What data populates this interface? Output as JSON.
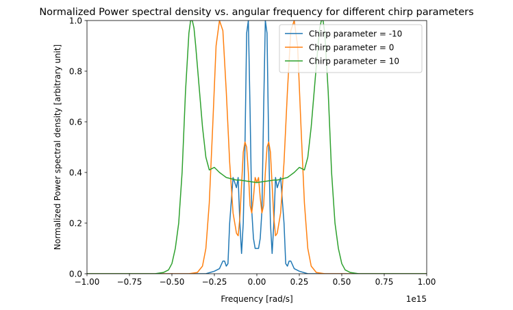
{
  "chart_data": {
    "type": "line",
    "title": "Normalized Power spectral density vs. angular frequency for different chirp parameters",
    "xlabel": "Frequency [rad/s]",
    "ylabel": "Normalized Power spectral density [arbitrary unit]",
    "x_offset_label": "1e15",
    "xlim": [
      -1.0,
      1.0
    ],
    "ylim": [
      0.0,
      1.0
    ],
    "x_ticks": [
      -1.0,
      -0.75,
      -0.5,
      -0.25,
      0.0,
      0.25,
      0.5,
      0.75,
      1.0
    ],
    "x_tick_labels": [
      "−1.00",
      "−0.75",
      "−0.50",
      "−0.25",
      "0.00",
      "0.25",
      "0.50",
      "0.75",
      "1.00"
    ],
    "y_ticks": [
      0.0,
      0.2,
      0.4,
      0.6,
      0.8,
      1.0
    ],
    "y_tick_labels": [
      "0.0",
      "0.2",
      "0.4",
      "0.6",
      "0.8",
      "1.0"
    ],
    "grid": false,
    "legend_position": "top-right",
    "series": [
      {
        "name": "Chirp parameter = -10",
        "color": "#1f77b4",
        "x": [
          -1.0,
          -0.3,
          -0.25,
          -0.22,
          -0.2,
          -0.19,
          -0.18,
          -0.17,
          -0.16,
          -0.14,
          -0.13,
          -0.12,
          -0.11,
          -0.1,
          -0.09,
          -0.08,
          -0.07,
          -0.06,
          -0.05,
          -0.04,
          -0.03,
          -0.02,
          -0.01,
          0.0,
          0.01,
          0.02,
          0.03,
          0.04,
          0.05,
          0.06,
          0.07,
          0.08,
          0.09,
          0.1,
          0.11,
          0.12,
          0.13,
          0.14,
          0.16,
          0.17,
          0.18,
          0.19,
          0.2,
          0.22,
          0.25,
          0.3,
          1.0
        ],
        "y": [
          0.0,
          0.0,
          0.01,
          0.02,
          0.05,
          0.05,
          0.03,
          0.04,
          0.2,
          0.38,
          0.36,
          0.34,
          0.38,
          0.2,
          0.08,
          0.2,
          0.5,
          0.95,
          1.0,
          0.65,
          0.25,
          0.14,
          0.1,
          0.1,
          0.1,
          0.14,
          0.25,
          0.65,
          1.0,
          0.95,
          0.5,
          0.2,
          0.08,
          0.2,
          0.38,
          0.34,
          0.36,
          0.38,
          0.2,
          0.04,
          0.03,
          0.05,
          0.05,
          0.02,
          0.01,
          0.0,
          0.0
        ]
      },
      {
        "name": "Chirp parameter = 0",
        "color": "#ff7f0e",
        "x": [
          -1.0,
          -0.4,
          -0.35,
          -0.32,
          -0.3,
          -0.28,
          -0.26,
          -0.24,
          -0.22,
          -0.2,
          -0.18,
          -0.16,
          -0.14,
          -0.12,
          -0.11,
          -0.1,
          -0.09,
          -0.08,
          -0.07,
          -0.06,
          -0.05,
          -0.04,
          -0.03,
          -0.02,
          -0.01,
          0.0,
          0.01,
          0.02,
          0.03,
          0.04,
          0.05,
          0.06,
          0.07,
          0.08,
          0.09,
          0.1,
          0.11,
          0.12,
          0.14,
          0.16,
          0.18,
          0.2,
          0.22,
          0.24,
          0.26,
          0.28,
          0.3,
          0.32,
          0.35,
          0.4,
          1.0
        ],
        "y": [
          0.0,
          0.0,
          0.005,
          0.03,
          0.1,
          0.28,
          0.58,
          0.9,
          1.0,
          0.96,
          0.72,
          0.44,
          0.24,
          0.16,
          0.15,
          0.22,
          0.35,
          0.48,
          0.52,
          0.5,
          0.4,
          0.27,
          0.24,
          0.3,
          0.38,
          0.36,
          0.38,
          0.3,
          0.24,
          0.27,
          0.4,
          0.5,
          0.52,
          0.48,
          0.35,
          0.22,
          0.15,
          0.16,
          0.24,
          0.44,
          0.72,
          0.96,
          1.0,
          0.9,
          0.58,
          0.28,
          0.1,
          0.03,
          0.005,
          0.0,
          0.0
        ]
      },
      {
        "name": "Chirp parameter = 10",
        "color": "#2ca02c",
        "x": [
          -1.0,
          -0.6,
          -0.55,
          -0.52,
          -0.5,
          -0.48,
          -0.46,
          -0.44,
          -0.42,
          -0.4,
          -0.39,
          -0.38,
          -0.37,
          -0.36,
          -0.35,
          -0.34,
          -0.33,
          -0.32,
          -0.3,
          -0.28,
          -0.25,
          -0.22,
          -0.2,
          -0.18,
          -0.15,
          -0.12,
          -0.1,
          -0.05,
          0.0,
          0.05,
          0.1,
          0.12,
          0.15,
          0.18,
          0.2,
          0.22,
          0.25,
          0.28,
          0.3,
          0.32,
          0.33,
          0.34,
          0.35,
          0.36,
          0.37,
          0.38,
          0.39,
          0.4,
          0.42,
          0.44,
          0.46,
          0.48,
          0.5,
          0.52,
          0.55,
          0.6,
          1.0
        ],
        "y": [
          0.0,
          0.0,
          0.005,
          0.015,
          0.04,
          0.1,
          0.2,
          0.4,
          0.72,
          0.95,
          1.0,
          1.0,
          0.97,
          0.9,
          0.82,
          0.74,
          0.66,
          0.58,
          0.46,
          0.41,
          0.42,
          0.4,
          0.39,
          0.38,
          0.375,
          0.37,
          0.37,
          0.365,
          0.36,
          0.365,
          0.37,
          0.37,
          0.375,
          0.38,
          0.39,
          0.4,
          0.42,
          0.41,
          0.46,
          0.58,
          0.66,
          0.74,
          0.82,
          0.9,
          0.97,
          1.0,
          1.0,
          0.95,
          0.72,
          0.4,
          0.2,
          0.1,
          0.04,
          0.015,
          0.005,
          0.0,
          0.0
        ]
      }
    ]
  }
}
